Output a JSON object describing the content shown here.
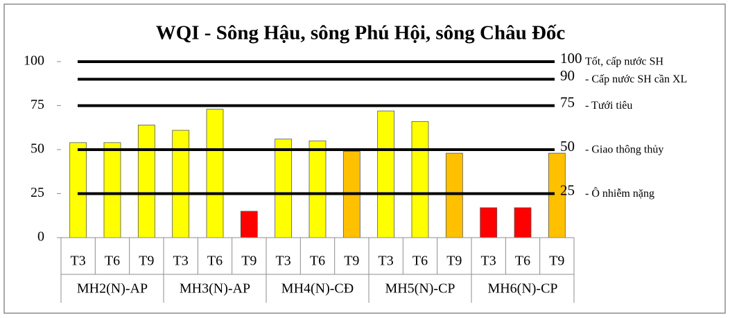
{
  "chart_data": {
    "type": "bar",
    "title": "WQI - Sông Hậu, sông Phú Hội, sông Châu Đốc",
    "categories": [
      "T3",
      "T6",
      "T9",
      "T3",
      "T6",
      "T9",
      "T3",
      "T6",
      "T9",
      "T3",
      "T6",
      "T9",
      "T3",
      "T6",
      "T9"
    ],
    "groups": [
      "MH2(N)-AP",
      "MH3(N)-AP",
      "MH4(N)-CĐ",
      "MH5(N)-CP",
      "MH6(N)-CP"
    ],
    "values": [
      54,
      54,
      64,
      61,
      73,
      15,
      56,
      55,
      49,
      72,
      66,
      48,
      17,
      17,
      48
    ],
    "colors": [
      "#ffff00",
      "#ffff00",
      "#ffff00",
      "#ffff00",
      "#ffff00",
      "#ff0000",
      "#ffff00",
      "#ffff00",
      "#ffc000",
      "#ffff00",
      "#ffff00",
      "#ffc000",
      "#ff0000",
      "#ff0000",
      "#ffc000"
    ],
    "ylim": [
      0,
      100
    ],
    "yticks": [
      0,
      25,
      50,
      75,
      100
    ],
    "reference_lines": [
      {
        "value": 100,
        "text": "Tốt, cấp nước SH"
      },
      {
        "value": 90,
        "text": "- Cấp nước SH cần XL"
      },
      {
        "value": 75,
        "text": "- Tưới tiêu"
      },
      {
        "value": 50,
        "text": "- Giao thông thủy"
      },
      {
        "value": 25,
        "text": "- Ô nhiễm nặng"
      }
    ]
  }
}
